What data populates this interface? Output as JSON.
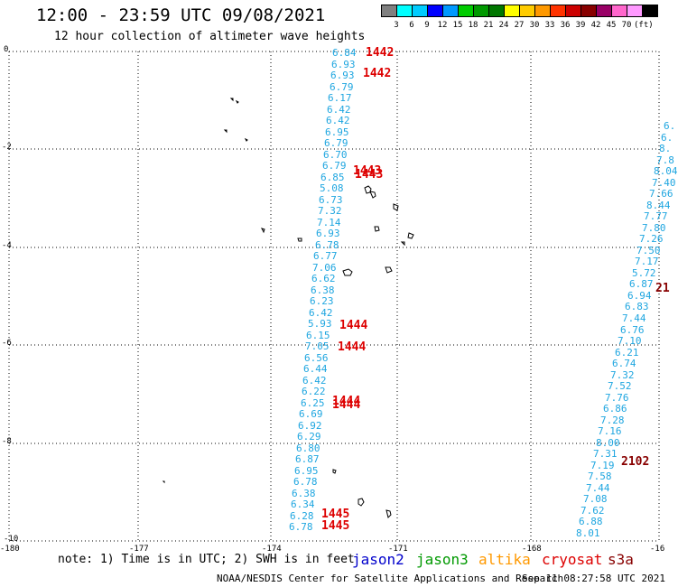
{
  "title": "12:00 - 23:59 UTC 09/08/2021",
  "subtitle": "12 hour collection of altimeter wave heights",
  "legend": {
    "colors": [
      "#808080",
      "#00ffff",
      "#00ccff",
      "#0000ff",
      "#0099ff",
      "#00cc00",
      "#009900",
      "#007700",
      "#ffff00",
      "#ffcc00",
      "#ff9900",
      "#ff3300",
      "#cc0000",
      "#880000",
      "#990066",
      "#ff66cc",
      "#ff99ff",
      "#000000"
    ],
    "labels": [
      "3",
      "6",
      "9",
      "12",
      "15",
      "18",
      "21",
      "24",
      "27",
      "30",
      "33",
      "36",
      "39",
      "42",
      "45",
      "70",
      "(ft)"
    ]
  },
  "axes": {
    "y_labels": [
      "0",
      "-2",
      "-4",
      "-6",
      "-8",
      "-10"
    ],
    "x_labels": [
      "-180",
      "-177",
      "-174",
      "-171",
      "-168",
      "-16"
    ]
  },
  "swh_left": [
    "6.84",
    "6.93",
    "6.93",
    "6.79",
    "6.17",
    "6.42",
    "6.42",
    "6.95",
    "6.79",
    "6.70",
    "6.79",
    "6.85",
    "5.08",
    "6.73",
    "7.32",
    "7.14",
    "6.93",
    "6.78",
    "6.77",
    "7.06",
    "6.62",
    "6.38",
    "6.23",
    "6.42",
    "5.93",
    "6.15",
    "7.05",
    "6.56",
    "6.44",
    "6.42",
    "6.22",
    "6.25",
    "6.69",
    "6.92",
    "6.29",
    "6.80",
    "6.87",
    "6.95",
    "6.78",
    "6.38",
    "6.34",
    "6.28",
    "6.78"
  ],
  "swh_right": [
    "6.",
    "6.",
    "8.",
    "7.8",
    "8.04",
    "7.40",
    "7.66",
    "8.44",
    "7.77",
    "7.80",
    "7.26",
    "7.50",
    "7.17",
    "5.72",
    "6.87",
    "6.94",
    "6.83",
    "7.44",
    "6.76",
    "7.10",
    "6.21",
    "6.74",
    "7.32",
    "7.52",
    "7.76",
    "6.86",
    "7.28",
    "7.16",
    "8.00",
    "7.31",
    "7.19",
    "7.58",
    "7.44",
    "7.08",
    "7.62",
    "6.88",
    "8.01"
  ],
  "passes_left": [
    "1442",
    "1442",
    "1443",
    "1443",
    "1444",
    "1444",
    "1444",
    "1444",
    "1445",
    "1445"
  ],
  "passes_right": [
    "21",
    "2102"
  ],
  "note": "note: 1) Time is in UTC; 2) SWH is in feet",
  "satellites": [
    {
      "name": "jason2",
      "color": "#0000cc"
    },
    {
      "name": "jason3",
      "color": "#009900"
    },
    {
      "name": "altika",
      "color": "#ff9900"
    },
    {
      "name": "cryosat",
      "color": "#dd0000"
    },
    {
      "name": "s3a",
      "color": "#880000"
    }
  ],
  "credit": "NOAA/NESDIS Center for Satellite Applications and Research",
  "timestamp": "Sep 11 08:27:58 UTC 2021",
  "colors": {
    "swh": "#1fa6e0",
    "pass_left": "#dd0000",
    "pass_right": "#880000"
  }
}
